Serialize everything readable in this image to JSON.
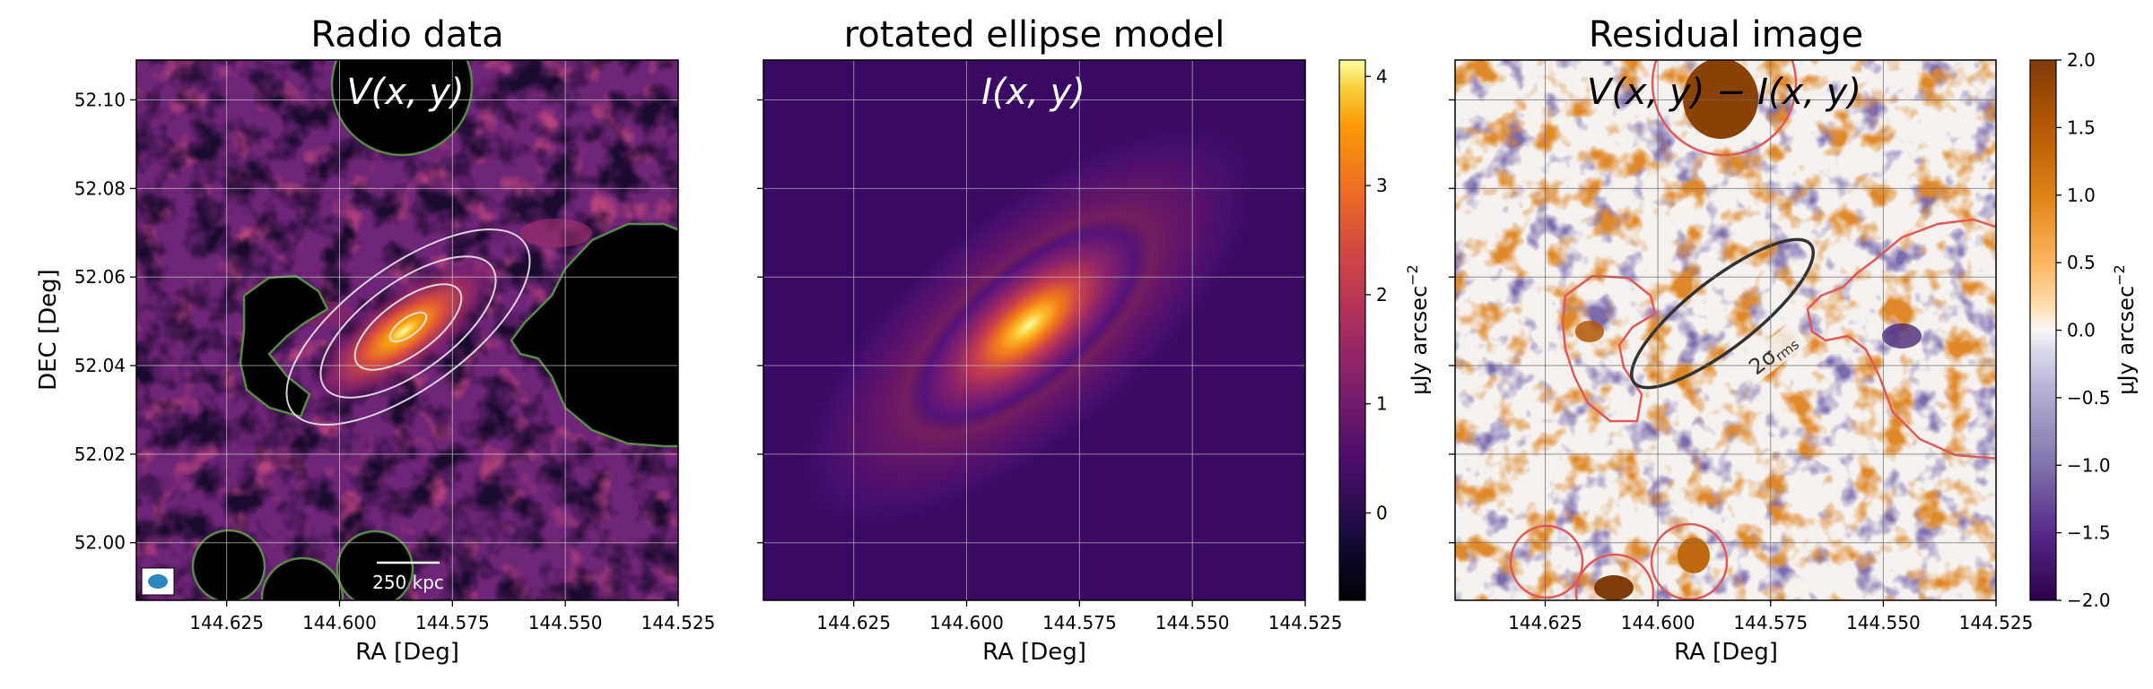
{
  "colors": {
    "mask_contour_data": "#5a8a4c",
    "mask_contour_residual": "#e05a5a",
    "model_contour": "#e8e8e8",
    "beam": "#2e86c1",
    "sigma_ellipse": "#333333"
  },
  "chart_data": [
    {
      "type": "heatmap",
      "title": "Radio data",
      "overlay_label": "V(x, y)",
      "xlabel": "RA [Deg]",
      "ylabel": "DEC [Deg]",
      "xlim": [
        144.645,
        144.525
      ],
      "ylim": [
        51.987,
        52.109
      ],
      "xticks": [
        "144.625",
        "144.600",
        "144.575",
        "144.550",
        "144.525"
      ],
      "xtick_values": [
        144.625,
        144.6,
        144.575,
        144.55,
        144.525
      ],
      "yticks": [
        "52.10",
        "52.08",
        "52.06",
        "52.04",
        "52.02",
        "52.00"
      ],
      "ytick_values": [
        52.1,
        52.08,
        52.06,
        52.04,
        52.02,
        52.0
      ],
      "colormap": "inferno",
      "grid": true,
      "scalebar_label": "250 kpc",
      "source_center": [
        144.583,
        52.047
      ]
    },
    {
      "type": "heatmap",
      "title": "rotated ellipse model",
      "overlay_label": "I(x, y)",
      "xlabel": "RA [Deg]",
      "xlim": [
        144.645,
        144.525
      ],
      "ylim": [
        51.987,
        52.109
      ],
      "xticks": [
        "144.625",
        "144.600",
        "144.575",
        "144.550",
        "144.525"
      ],
      "xtick_values": [
        144.625,
        144.6,
        144.575,
        144.55,
        144.525
      ],
      "colormap": "inferno",
      "grid": true,
      "colorbar": {
        "label": "μJy arcsec",
        "label_power": "−2",
        "range": [
          -0.8,
          4.15
        ],
        "ticks": [
          "4",
          "3",
          "2",
          "1",
          "0"
        ],
        "tick_values": [
          4,
          3,
          2,
          1,
          0
        ]
      }
    },
    {
      "type": "heatmap",
      "title": "Residual image",
      "overlay_label": "V(x, y) − I(x, y)",
      "xlabel": "RA [Deg]",
      "xlim": [
        144.645,
        144.525
      ],
      "ylim": [
        51.987,
        52.109
      ],
      "xticks": [
        "144.625",
        "144.600",
        "144.575",
        "144.550",
        "144.525"
      ],
      "xtick_values": [
        144.625,
        144.6,
        144.575,
        144.55,
        144.525
      ],
      "colormap": "PuOr_r",
      "grid": true,
      "sigma_label": "2σ",
      "sigma_sub": "rms",
      "colorbar": {
        "label": "μJy arcsec",
        "label_power": "−2",
        "range": [
          -2.0,
          2.0
        ],
        "ticks": [
          "2.0",
          "1.5",
          "1.0",
          "0.5",
          "0.0",
          "−0.5",
          "−1.0",
          "−1.5",
          "−2.0"
        ],
        "tick_values": [
          2.0,
          1.5,
          1.0,
          0.5,
          0.0,
          -0.5,
          -1.0,
          -1.5,
          -2.0
        ]
      }
    }
  ]
}
